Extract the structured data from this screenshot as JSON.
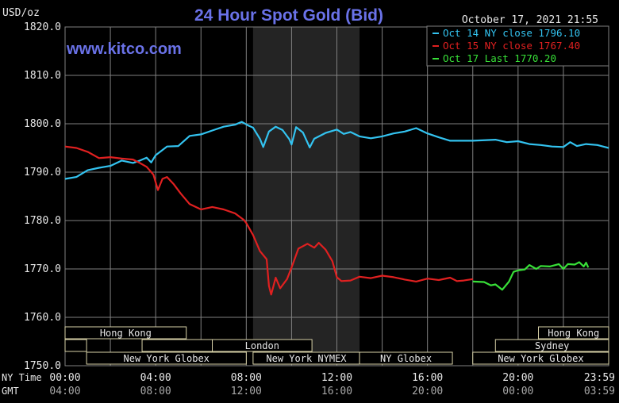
{
  "header": {
    "title": "24 Hour Spot Gold (Bid)",
    "date": "October 17, 2021 21:55",
    "website": "www.kitco.com",
    "units": "USD/oz"
  },
  "colors": {
    "background": "#000000",
    "grid": "#808080",
    "title": "#6a72e8",
    "website": "#6a72e8",
    "text": "#e8e8e8",
    "band_fill": "#000000",
    "band_border": "#d8d2a8",
    "session_shade": "#242424"
  },
  "chart_data": {
    "type": "line",
    "title": "24 Hour Spot Gold (Bid)",
    "ylabel": "USD/oz",
    "ylim": [
      1750,
      1820
    ],
    "yticks": [
      "1820.0",
      "1810.0",
      "1800.0",
      "1790.0",
      "1780.0",
      "1770.0",
      "1760.0",
      "1750.0"
    ],
    "ytick_values": [
      1820,
      1810,
      1800,
      1790,
      1780,
      1770,
      1760,
      1750
    ],
    "xlim": [
      0,
      24
    ],
    "xticks_hours": [
      0,
      4,
      8,
      12,
      16,
      20,
      23.983
    ],
    "x_rows": [
      {
        "label": "NY Time",
        "ticks": [
          "00:00",
          "04:00",
          "08:00",
          "12:00",
          "16:00",
          "20:00",
          "23:59"
        ]
      },
      {
        "label": "GMT",
        "ticks": [
          "04:00",
          "08:00",
          "12:00",
          "16:00",
          "20:00",
          "00:00",
          "03:59"
        ]
      }
    ],
    "shaded_region_hours": [
      8.3,
      13.0
    ],
    "legend_position": "top-right",
    "grid": true,
    "series": [
      {
        "name": "Oct 14 NY close 1796.10",
        "color": "#33c3f0",
        "points": [
          [
            0,
            1788.6
          ],
          [
            0.5,
            1789.0
          ],
          [
            1,
            1790.4
          ],
          [
            1.5,
            1790.9
          ],
          [
            2,
            1791.3
          ],
          [
            2.5,
            1792.4
          ],
          [
            3,
            1791.9
          ],
          [
            3.3,
            1792.4
          ],
          [
            3.6,
            1793.0
          ],
          [
            3.8,
            1792.0
          ],
          [
            4,
            1793.5
          ],
          [
            4.5,
            1795.3
          ],
          [
            5,
            1795.4
          ],
          [
            5.5,
            1797.5
          ],
          [
            6,
            1797.8
          ],
          [
            6.5,
            1798.6
          ],
          [
            7,
            1799.4
          ],
          [
            7.5,
            1799.8
          ],
          [
            7.8,
            1800.4
          ],
          [
            8.1,
            1799.6
          ],
          [
            8.3,
            1799.2
          ],
          [
            8.6,
            1796.9
          ],
          [
            8.75,
            1795.2
          ],
          [
            9,
            1798.4
          ],
          [
            9.3,
            1799.4
          ],
          [
            9.6,
            1798.7
          ],
          [
            9.9,
            1796.8
          ],
          [
            10.0,
            1795.7
          ],
          [
            10.2,
            1799.3
          ],
          [
            10.5,
            1798.2
          ],
          [
            10.8,
            1795.1
          ],
          [
            11.0,
            1796.9
          ],
          [
            11.5,
            1798.1
          ],
          [
            12.0,
            1798.8
          ],
          [
            12.3,
            1797.9
          ],
          [
            12.6,
            1798.3
          ],
          [
            13.0,
            1797.4
          ],
          [
            13.5,
            1797.0
          ],
          [
            14.0,
            1797.4
          ],
          [
            14.5,
            1798.0
          ],
          [
            15.0,
            1798.4
          ],
          [
            15.5,
            1799.1
          ],
          [
            16.0,
            1798.0
          ],
          [
            16.5,
            1797.2
          ],
          [
            17.0,
            1796.5
          ],
          [
            18.0,
            1796.5
          ],
          [
            19.0,
            1796.7
          ],
          [
            19.5,
            1796.2
          ],
          [
            20.0,
            1796.4
          ],
          [
            20.5,
            1795.8
          ],
          [
            21.0,
            1795.6
          ],
          [
            21.5,
            1795.3
          ],
          [
            22.0,
            1795.2
          ],
          [
            22.3,
            1796.2
          ],
          [
            22.6,
            1795.4
          ],
          [
            23.0,
            1795.8
          ],
          [
            23.5,
            1795.6
          ],
          [
            24.0,
            1795.0
          ]
        ]
      },
      {
        "name": "Oct 15 NY close 1767.40",
        "color": "#e02020",
        "points": [
          [
            0,
            1795.3
          ],
          [
            0.5,
            1795.0
          ],
          [
            1,
            1794.2
          ],
          [
            1.5,
            1792.9
          ],
          [
            2,
            1793.1
          ],
          [
            2.5,
            1792.8
          ],
          [
            3,
            1792.6
          ],
          [
            3.3,
            1791.9
          ],
          [
            3.6,
            1791.1
          ],
          [
            3.9,
            1789.5
          ],
          [
            4.1,
            1786.3
          ],
          [
            4.3,
            1788.6
          ],
          [
            4.5,
            1789.0
          ],
          [
            4.8,
            1787.5
          ],
          [
            5.1,
            1785.6
          ],
          [
            5.5,
            1783.4
          ],
          [
            6.0,
            1782.3
          ],
          [
            6.5,
            1782.8
          ],
          [
            7.0,
            1782.3
          ],
          [
            7.5,
            1781.5
          ],
          [
            7.9,
            1780.1
          ],
          [
            8.0,
            1779.5
          ],
          [
            8.3,
            1777.0
          ],
          [
            8.6,
            1773.7
          ],
          [
            8.9,
            1772.0
          ],
          [
            9.0,
            1766.5
          ],
          [
            9.1,
            1764.7
          ],
          [
            9.3,
            1768.2
          ],
          [
            9.5,
            1766.0
          ],
          [
            9.8,
            1767.9
          ],
          [
            10.0,
            1770.3
          ],
          [
            10.3,
            1774.2
          ],
          [
            10.7,
            1775.2
          ],
          [
            11.0,
            1774.4
          ],
          [
            11.2,
            1775.4
          ],
          [
            11.5,
            1774.0
          ],
          [
            11.8,
            1771.6
          ],
          [
            12.0,
            1768.3
          ],
          [
            12.2,
            1767.5
          ],
          [
            12.6,
            1767.6
          ],
          [
            13.0,
            1768.4
          ],
          [
            13.5,
            1768.1
          ],
          [
            14.0,
            1768.6
          ],
          [
            14.5,
            1768.3
          ],
          [
            15.0,
            1767.8
          ],
          [
            15.5,
            1767.4
          ],
          [
            16.0,
            1768.0
          ],
          [
            16.5,
            1767.7
          ],
          [
            17.0,
            1768.2
          ],
          [
            17.3,
            1767.5
          ],
          [
            17.6,
            1767.6
          ],
          [
            18.0,
            1767.9
          ]
        ]
      },
      {
        "name": "Oct 17 Last 1770.20",
        "color": "#38e038",
        "points": [
          [
            18.0,
            1767.4
          ],
          [
            18.5,
            1767.3
          ],
          [
            18.8,
            1766.6
          ],
          [
            19.0,
            1766.8
          ],
          [
            19.3,
            1765.7
          ],
          [
            19.6,
            1767.4
          ],
          [
            19.8,
            1769.4
          ],
          [
            20.0,
            1769.7
          ],
          [
            20.3,
            1769.9
          ],
          [
            20.5,
            1770.8
          ],
          [
            20.8,
            1770.0
          ],
          [
            21.0,
            1770.6
          ],
          [
            21.4,
            1770.5
          ],
          [
            21.8,
            1771.0
          ],
          [
            22.0,
            1770.0
          ],
          [
            22.2,
            1771.0
          ],
          [
            22.5,
            1770.9
          ],
          [
            22.7,
            1771.4
          ],
          [
            22.9,
            1770.5
          ],
          [
            23.0,
            1771.3
          ],
          [
            23.1,
            1770.3
          ]
        ]
      }
    ]
  },
  "session_bands": [
    {
      "label": "Hong Kong",
      "row": 0,
      "start": 0,
      "end": 5.35
    },
    {
      "label": "Hong Kong",
      "row": 0,
      "start": 20.9,
      "end": 24
    },
    {
      "label": "",
      "row": 1,
      "start": 0,
      "end": 0.95
    },
    {
      "label": "",
      "row": 1,
      "start": 3.4,
      "end": 6.5
    },
    {
      "label": "London",
      "row": 1,
      "start": 6.5,
      "end": 10.9
    },
    {
      "label": "Sydney",
      "row": 1,
      "start": 19.0,
      "end": 24
    },
    {
      "label": "New York Globex",
      "row": 2,
      "start": 0.95,
      "end": 8.0
    },
    {
      "label": "New York NYMEX",
      "row": 2,
      "start": 8.3,
      "end": 13.0
    },
    {
      "label": "NY Globex",
      "row": 2,
      "start": 13.0,
      "end": 17.1
    },
    {
      "label": "New York Globex",
      "row": 2,
      "start": 18.0,
      "end": 24
    }
  ]
}
